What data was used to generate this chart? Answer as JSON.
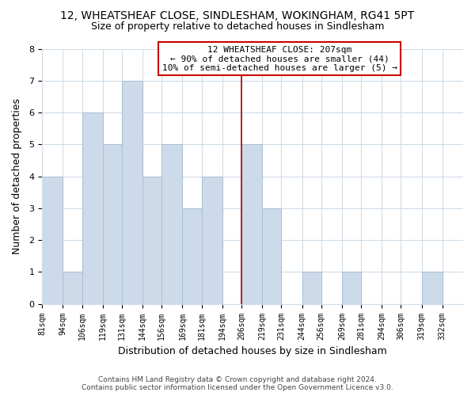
{
  "title": "12, WHEATSHEAF CLOSE, SINDLESHAM, WOKINGHAM, RG41 5PT",
  "subtitle": "Size of property relative to detached houses in Sindlesham",
  "xlabel": "Distribution of detached houses by size in Sindlesham",
  "ylabel": "Number of detached properties",
  "bar_color": "#cddaea",
  "bar_edge_color": "#a8c0d6",
  "bin_labels": [
    "81sqm",
    "94sqm",
    "106sqm",
    "119sqm",
    "131sqm",
    "144sqm",
    "156sqm",
    "169sqm",
    "181sqm",
    "194sqm",
    "206sqm",
    "219sqm",
    "231sqm",
    "244sqm",
    "256sqm",
    "269sqm",
    "281sqm",
    "294sqm",
    "306sqm",
    "319sqm",
    "332sqm"
  ],
  "bin_edges": [
    81,
    94,
    106,
    119,
    131,
    144,
    156,
    169,
    181,
    194,
    206,
    219,
    231,
    244,
    256,
    269,
    281,
    294,
    306,
    319,
    332,
    345
  ],
  "counts": [
    4,
    1,
    6,
    5,
    7,
    4,
    5,
    3,
    4,
    0,
    5,
    3,
    0,
    1,
    0,
    1,
    0,
    0,
    0,
    1,
    0
  ],
  "property_line_x": 206,
  "property_line_color": "#aa0000",
  "annotation_title": "12 WHEATSHEAF CLOSE: 207sqm",
  "annotation_line1": "← 90% of detached houses are smaller (44)",
  "annotation_line2": "10% of semi-detached houses are larger (5) →",
  "annotation_box_facecolor": "#ffffff",
  "annotation_box_edgecolor": "#cc0000",
  "footer_line1": "Contains HM Land Registry data © Crown copyright and database right 2024.",
  "footer_line2": "Contains public sector information licensed under the Open Government Licence v3.0.",
  "ylim": [
    0,
    8
  ],
  "background_color": "#ffffff",
  "grid_color": "#d0dce8",
  "title_fontsize": 10,
  "subtitle_fontsize": 9
}
